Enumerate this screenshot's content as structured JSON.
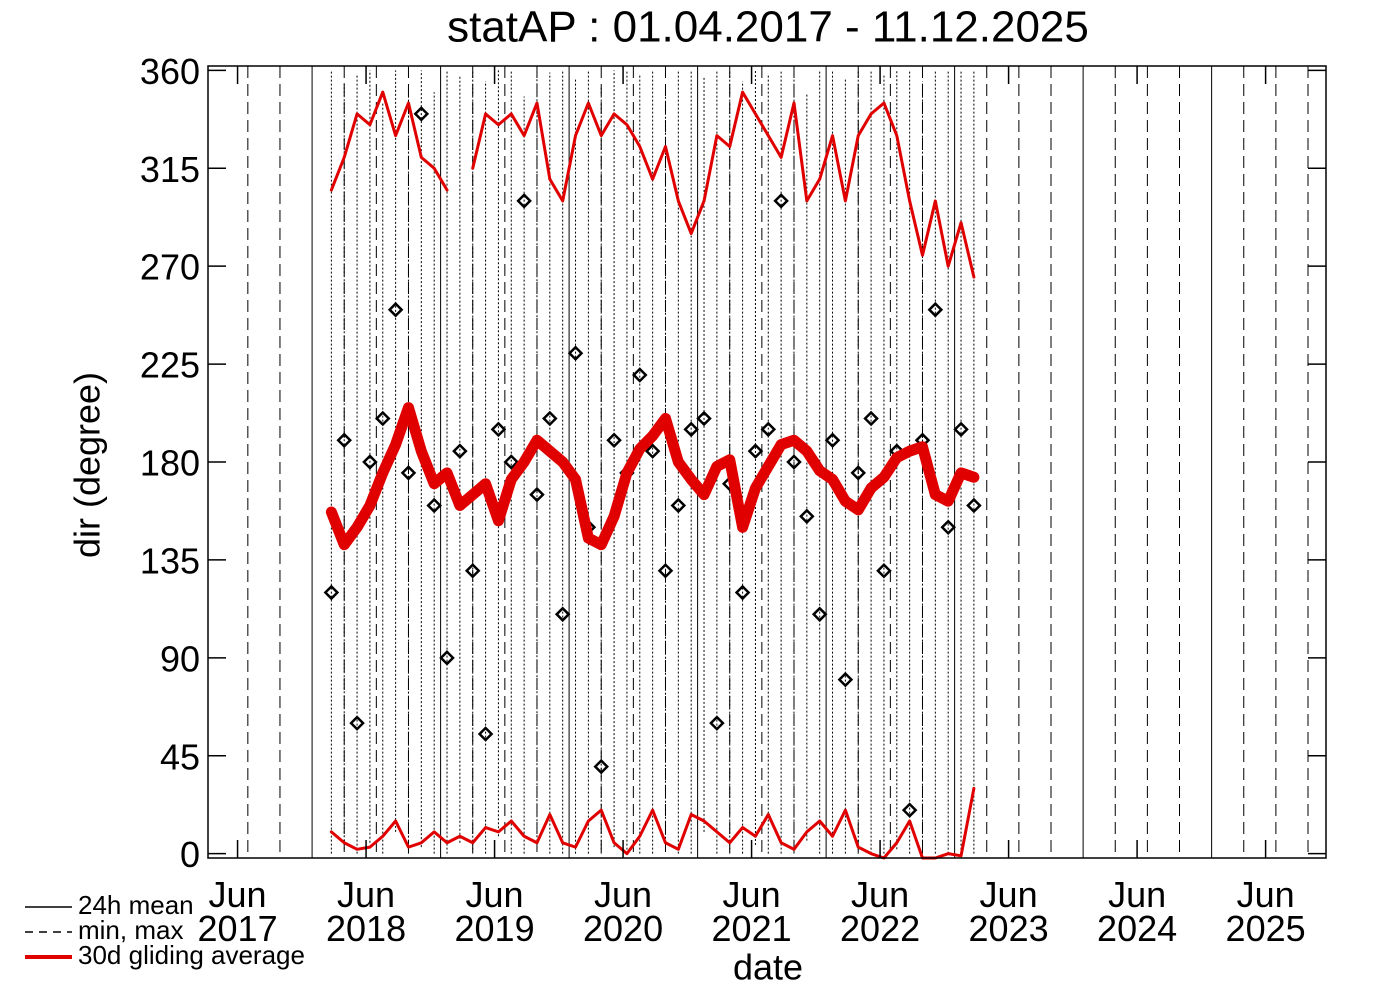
{
  "chart_data": {
    "type": "line",
    "title": "statAP : 01.04.2017 - 11.12.2025",
    "x_label": "date",
    "y_label": "dir (degree)",
    "xlim": [
      2017.19,
      2025.89
    ],
    "xticks": [
      {
        "value": 2017.42,
        "label": "Jun\n2017"
      },
      {
        "value": 2018.42,
        "label": "Jun\n2018"
      },
      {
        "value": 2019.42,
        "label": "Jun\n2019"
      },
      {
        "value": 2020.42,
        "label": "Jun\n2020"
      },
      {
        "value": 2021.42,
        "label": "Jun\n2021"
      },
      {
        "value": 2022.42,
        "label": "Jun\n2022"
      },
      {
        "value": 2023.42,
        "label": "Jun\n2023"
      },
      {
        "value": 2024.42,
        "label": "Jun\n2024"
      },
      {
        "value": 2025.42,
        "label": "Jun\n2025"
      }
    ],
    "ylim": [
      -2,
      362
    ],
    "yticks": [
      0,
      45,
      90,
      135,
      180,
      225,
      270,
      315,
      360
    ],
    "xgrid_major": [
      2018,
      2019,
      2020,
      2021,
      2022,
      2023,
      2024,
      2025
    ],
    "xgrid_minor": [
      2017.5,
      2017.75,
      2018.25,
      2018.5,
      2018.75,
      2019.25,
      2019.5,
      2019.75,
      2020.25,
      2020.5,
      2020.75,
      2021.25,
      2021.5,
      2021.75,
      2022.25,
      2022.5,
      2022.75,
      2023.25,
      2023.5,
      2023.75,
      2024.25,
      2024.5,
      2024.75,
      2025.25,
      2025.5,
      2025.75
    ],
    "legend": "bottom-left",
    "x": [
      2018.15,
      2018.25,
      2018.35,
      2018.45,
      2018.55,
      2018.65,
      2018.75,
      2018.85,
      2018.95,
      2019.05,
      2019.15,
      2019.25,
      2019.35,
      2019.45,
      2019.55,
      2019.65,
      2019.75,
      2019.85,
      2019.95,
      2020.05,
      2020.15,
      2020.25,
      2020.35,
      2020.45,
      2020.55,
      2020.65,
      2020.75,
      2020.85,
      2020.95,
      2021.05,
      2021.15,
      2021.25,
      2021.35,
      2021.45,
      2021.55,
      2021.65,
      2021.75,
      2021.85,
      2021.95,
      2022.05,
      2022.15,
      2022.25,
      2022.35,
      2022.45,
      2022.55,
      2022.65,
      2022.75,
      2022.85,
      2022.95,
      2023.05,
      2023.15
    ],
    "series": [
      {
        "name": "24h mean",
        "color": "#000000",
        "line_style": "solid",
        "values": [
          120,
          190,
          60,
          180,
          200,
          250,
          175,
          340,
          160,
          90,
          185,
          130,
          55,
          195,
          180,
          300,
          165,
          200,
          110,
          230,
          150,
          40,
          190,
          175,
          220,
          185,
          130,
          160,
          195,
          200,
          60,
          170,
          120,
          185,
          195,
          300,
          180,
          155,
          110,
          190,
          80,
          175,
          200,
          130,
          185,
          20,
          190,
          250,
          150,
          195,
          160
        ]
      },
      {
        "name": "min, max",
        "color": "#000000",
        "line_style": "dashed",
        "min": [
          0,
          2,
          0,
          5,
          0,
          10,
          0,
          3,
          0,
          0,
          5,
          0,
          0,
          8,
          0,
          0,
          2,
          0,
          0,
          0,
          0,
          0,
          3,
          0,
          0,
          0,
          5,
          0,
          0,
          10,
          0,
          0,
          0,
          4,
          0,
          0,
          0,
          6,
          0,
          0,
          0,
          0,
          0,
          0,
          2,
          0,
          0,
          0,
          0,
          0,
          0
        ],
        "max": [
          360,
          355,
          358,
          360,
          345,
          360,
          352,
          360,
          350,
          360,
          358,
          360,
          355,
          360,
          360,
          348,
          360,
          359,
          360,
          356,
          360,
          352,
          360,
          360,
          358,
          360,
          350,
          360,
          360,
          357,
          360,
          360,
          355,
          360,
          358,
          360,
          360,
          349,
          360,
          360,
          356,
          360,
          360,
          358,
          360,
          360,
          355,
          360,
          360,
          360,
          360
        ]
      },
      {
        "name": "30d gliding average",
        "color": "#e00000",
        "line_style": "solid",
        "values": [
          157,
          142,
          150,
          160,
          175,
          188,
          205,
          185,
          170,
          175,
          160,
          165,
          170,
          153,
          172,
          180,
          190,
          185,
          180,
          172,
          145,
          142,
          155,
          175,
          186,
          192,
          200,
          180,
          172,
          165,
          178,
          181,
          150,
          168,
          178,
          188,
          190,
          185,
          176,
          172,
          162,
          158,
          168,
          173,
          182,
          185,
          187,
          165,
          162,
          175,
          173
        ],
        "upper": [
          305,
          320,
          340,
          335,
          350,
          330,
          345,
          320,
          315,
          305,
          null,
          315,
          340,
          335,
          340,
          330,
          345,
          310,
          300,
          330,
          345,
          330,
          340,
          335,
          325,
          310,
          325,
          300,
          285,
          300,
          330,
          325,
          350,
          340,
          330,
          320,
          345,
          300,
          310,
          330,
          300,
          330,
          340,
          345,
          330,
          300,
          275,
          300,
          270,
          290,
          265
        ],
        "lower": [
          10,
          5,
          2,
          3,
          8,
          15,
          3,
          5,
          10,
          5,
          8,
          5,
          12,
          10,
          15,
          8,
          5,
          18,
          5,
          3,
          15,
          20,
          5,
          0,
          8,
          20,
          5,
          2,
          18,
          15,
          10,
          5,
          12,
          8,
          18,
          5,
          2,
          10,
          15,
          8,
          20,
          3,
          0,
          -2,
          5,
          15,
          -2,
          -2,
          0,
          -1,
          30
        ]
      }
    ]
  }
}
